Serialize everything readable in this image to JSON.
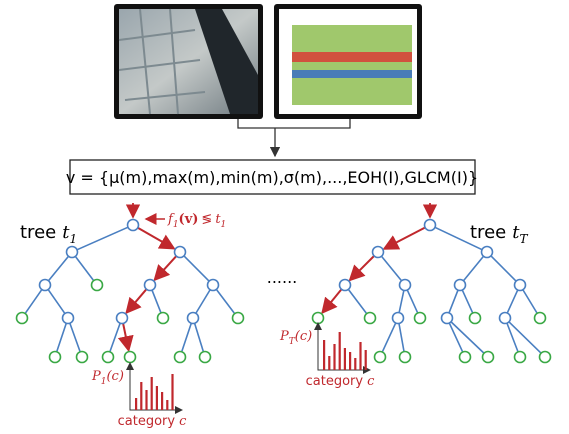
{
  "formula": "v = {μ(m),max(m),min(m),σ(m),...,EOH(I),GLCM(I)}",
  "trees": [
    {
      "label": "tree",
      "var": "t",
      "sub": "1",
      "hist_fn": "P",
      "hist_sub": "1",
      "hist_arg": "(c)",
      "axis_label": "category",
      "axis_var": "c"
    },
    {
      "label": "tree",
      "var": "t",
      "sub": "T",
      "hist_fn": "P",
      "hist_sub": "T",
      "hist_arg": "(c)",
      "axis_label": "category",
      "axis_var": "c"
    }
  ],
  "split": {
    "fn": "f",
    "sub": "1",
    "arg": "(v)",
    "op": "≶",
    "var": "t",
    "var_sub": "1"
  },
  "ellipsis": "......"
}
